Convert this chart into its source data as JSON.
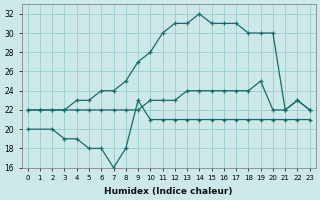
{
  "xlabel": "Humidex (Indice chaleur)",
  "bg_color": "#cce8e8",
  "grid_color": "#99cccc",
  "line_color": "#1a6b6b",
  "xlim": [
    -0.5,
    23.5
  ],
  "ylim": [
    16,
    33
  ],
  "xticks": [
    0,
    1,
    2,
    3,
    4,
    5,
    6,
    7,
    8,
    9,
    10,
    11,
    12,
    13,
    14,
    15,
    16,
    17,
    18,
    19,
    20,
    21,
    22,
    23
  ],
  "yticks": [
    16,
    18,
    20,
    22,
    24,
    26,
    28,
    30,
    32
  ],
  "line1_x": [
    0,
    1,
    2,
    3,
    4,
    5,
    6,
    7,
    8,
    9,
    10,
    11,
    12,
    13,
    14,
    15,
    16,
    17,
    18,
    19,
    20,
    21,
    22,
    23
  ],
  "line1_y": [
    22,
    22,
    22,
    22,
    23,
    23,
    24,
    24,
    25,
    27,
    28,
    30,
    31,
    31,
    32,
    31,
    31,
    31,
    30,
    30,
    30,
    22,
    23,
    22
  ],
  "line2_x": [
    0,
    1,
    2,
    3,
    4,
    5,
    6,
    7,
    8,
    9,
    10,
    11,
    12,
    13,
    14,
    15,
    16,
    17,
    18,
    19,
    20,
    21,
    22,
    23
  ],
  "line2_y": [
    22,
    22,
    22,
    22,
    22,
    22,
    22,
    22,
    22,
    22,
    23,
    23,
    23,
    24,
    24,
    24,
    24,
    24,
    24,
    25,
    22,
    22,
    23,
    22
  ],
  "line3_x": [
    0,
    2,
    3,
    4,
    5,
    6,
    7,
    8,
    9,
    10,
    11,
    12,
    13,
    14,
    15,
    16,
    17,
    18,
    19,
    20,
    21,
    22,
    23
  ],
  "line3_y": [
    20,
    20,
    19,
    19,
    18,
    18,
    16,
    18,
    23,
    21,
    21,
    21,
    21,
    21,
    21,
    21,
    21,
    21,
    21,
    21,
    21,
    21,
    21
  ]
}
